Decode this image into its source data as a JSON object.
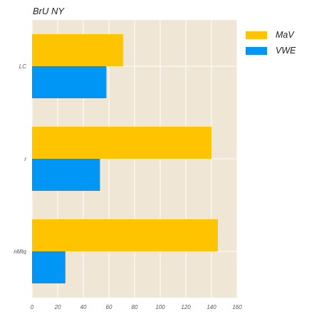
{
  "chart_data": {
    "type": "bar",
    "orientation": "horizontal",
    "title": "BrU NY",
    "categories": [
      "LC",
      "r",
      "nMtq"
    ],
    "series": [
      {
        "name": "MaV",
        "values": [
          71,
          140,
          145
        ],
        "color": "#FFC400"
      },
      {
        "name": "VWE",
        "values": [
          58,
          53,
          26
        ],
        "color": "#0096F5"
      }
    ],
    "xlim": [
      0,
      160
    ],
    "xticks": [
      0,
      20,
      40,
      60,
      80,
      100,
      120,
      140,
      160
    ],
    "xlabel": "",
    "ylabel": "",
    "grid": true,
    "legend_position": "top-right",
    "plot_background": "#EFE6D6",
    "grid_color": "#FFFFFF"
  }
}
